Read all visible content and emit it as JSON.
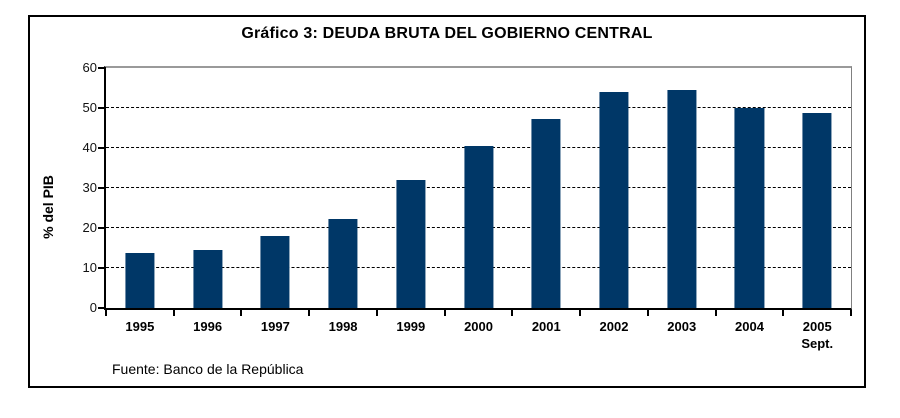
{
  "title": "Gráfico 3: DEUDA BRUTA DEL GOBIERNO CENTRAL",
  "chart_data": {
    "type": "bar",
    "title": "Gráfico 3: DEUDA BRUTA DEL GOBIERNO CENTRAL",
    "categories": [
      "1995",
      "1996",
      "1997",
      "1998",
      "1999",
      "2000",
      "2001",
      "2002",
      "2003",
      "2004",
      "2005"
    ],
    "category_sublabels": [
      "",
      "",
      "",
      "",
      "",
      "",
      "",
      "",
      "",
      "",
      "Sept."
    ],
    "values": [
      13.8,
      14.5,
      17.9,
      22.3,
      31.9,
      40.4,
      47.2,
      54.0,
      54.5,
      50.0,
      48.8
    ],
    "xlabel": "",
    "ylabel": "% del PIB",
    "ylim": [
      0,
      60
    ],
    "yticks": [
      0,
      10,
      20,
      30,
      40,
      50,
      60
    ],
    "grid": "horizontal-dashed",
    "legend": null,
    "bar_color": "#003767",
    "source_note": "Fuente: Banco de la República"
  }
}
